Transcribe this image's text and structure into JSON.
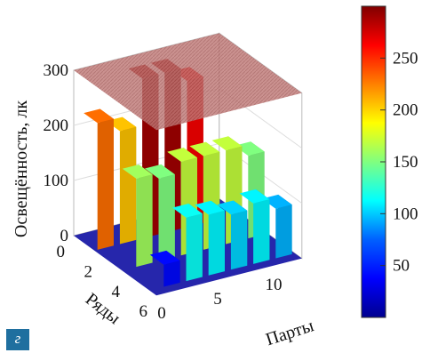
{
  "panel_label": "г",
  "colors": {
    "plane": "#b86a6a",
    "colormap": [
      "#00008f",
      "#0000ff",
      "#0080ff",
      "#00ffff",
      "#80ff80",
      "#ffff00",
      "#ff8000",
      "#ff0000",
      "#800000"
    ]
  },
  "chart_data": {
    "type": "bar3d",
    "title": "",
    "zlabel": "Освещённость, лк",
    "ylabel": "Ряды",
    "xlabel": "Парты",
    "x_ticks": [
      "0",
      "5",
      "10"
    ],
    "y_ticks": [
      "0",
      "2",
      "4",
      "6"
    ],
    "z_ticks": [
      "0",
      "100",
      "200",
      "300"
    ],
    "zlim": [
      0,
      300
    ],
    "colorbar": {
      "range": [
        0,
        300
      ],
      "ticks": [
        "50",
        "100",
        "150",
        "200",
        "250"
      ],
      "colormap": "jet"
    },
    "reference_plane": 300,
    "bars": [
      {
        "row": 1,
        "desk": 1,
        "value": 230
      },
      {
        "row": 1,
        "desk": 3,
        "value": 205
      },
      {
        "row": 1,
        "desk": 5,
        "value": 290
      },
      {
        "row": 1,
        "desk": 7,
        "value": 290
      },
      {
        "row": 1,
        "desk": 9,
        "value": 265
      },
      {
        "row": 3,
        "desk": 2,
        "value": 160
      },
      {
        "row": 3,
        "desk": 4,
        "value": 150
      },
      {
        "row": 3,
        "desk": 6,
        "value": 170
      },
      {
        "row": 3,
        "desk": 8,
        "value": 170
      },
      {
        "row": 3,
        "desk": 10,
        "value": 170
      },
      {
        "row": 3,
        "desk": 12,
        "value": 150
      },
      {
        "row": 5,
        "desk": 2,
        "value": 40
      },
      {
        "row": 5,
        "desk": 4,
        "value": 115
      },
      {
        "row": 5,
        "desk": 6,
        "value": 110
      },
      {
        "row": 5,
        "desk": 8,
        "value": 100
      },
      {
        "row": 5,
        "desk": 10,
        "value": 110
      },
      {
        "row": 5,
        "desk": 12,
        "value": 90
      }
    ]
  }
}
